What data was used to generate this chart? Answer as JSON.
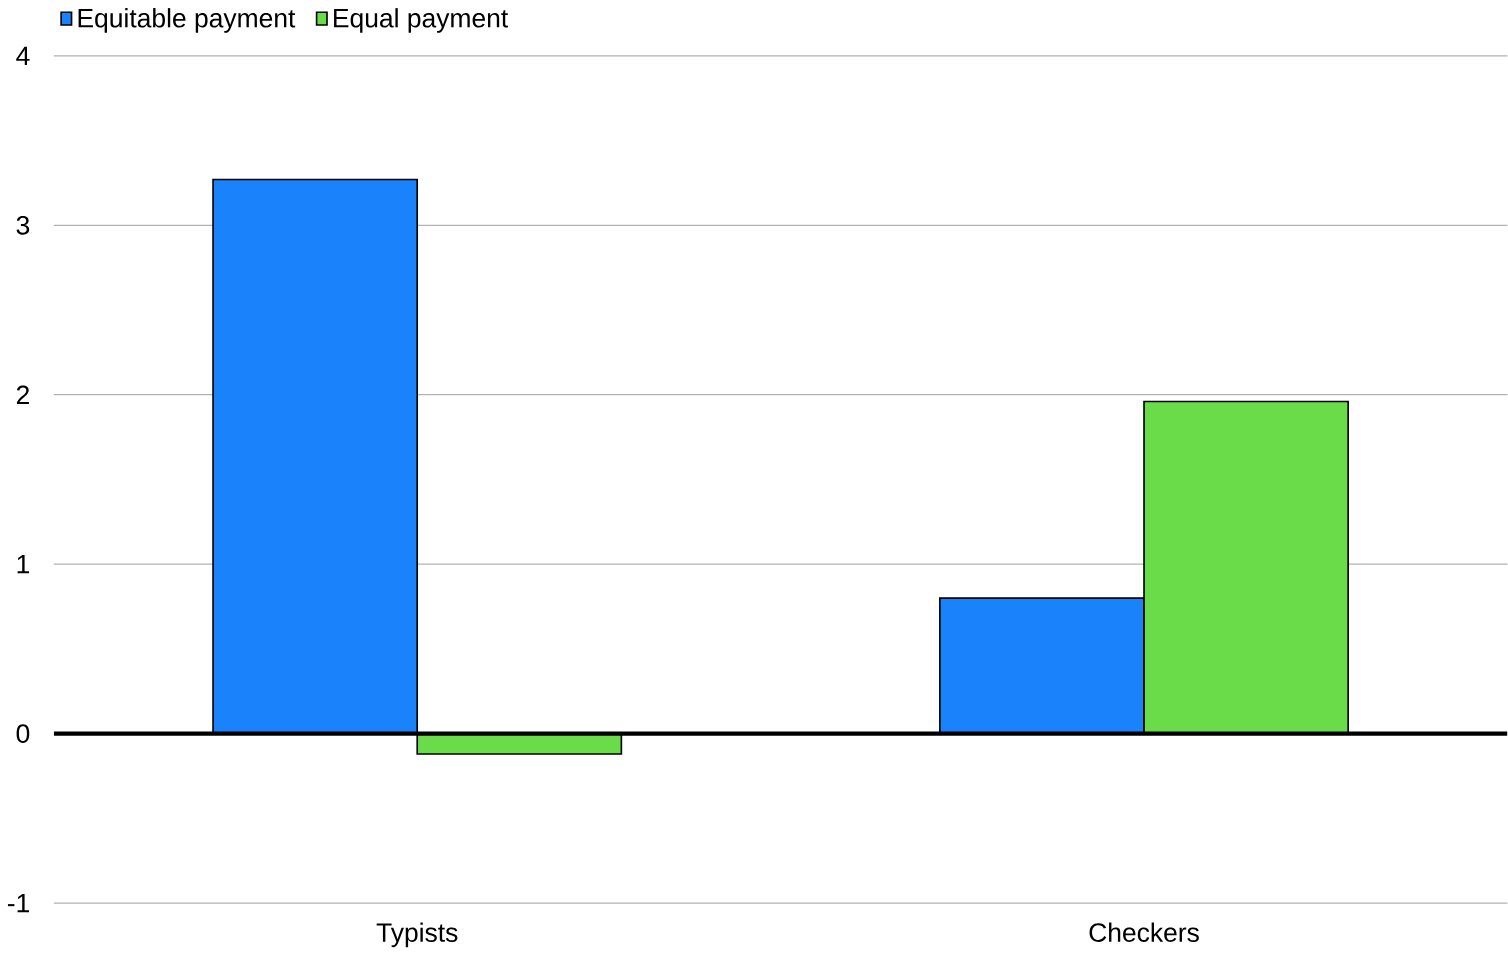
{
  "chart_data": {
    "type": "bar",
    "categories": [
      "Typists",
      "Checkers"
    ],
    "series": [
      {
        "name": "Equitable payment",
        "color": "#1a82fb",
        "values": [
          3.27,
          0.8
        ]
      },
      {
        "name": "Equal payment",
        "color": "#6adc4a",
        "values": [
          -0.12,
          1.96
        ]
      }
    ],
    "ylim": [
      -1,
      4
    ],
    "yticks": [
      -1,
      0,
      1,
      2,
      3,
      4
    ],
    "grid": "y",
    "legend": "top left"
  }
}
